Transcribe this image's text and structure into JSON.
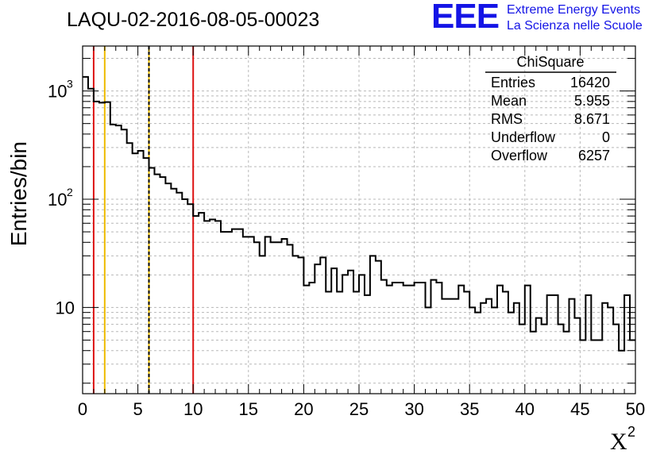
{
  "chart_data": {
    "type": "histogram",
    "title": "LAQU-02-2016-08-05-00023",
    "xlabel": "X",
    "xlabel_sup": "2",
    "ylabel": "Entries/bin",
    "xlim": [
      0,
      50
    ],
    "ylim": [
      1.6,
      2600
    ],
    "y_scale": "log",
    "grid": true,
    "x_ticks": [
      0,
      5,
      10,
      15,
      20,
      25,
      30,
      35,
      40,
      45,
      50
    ],
    "y_major_ticks": [
      10,
      100,
      1000
    ],
    "y_major_labels": [
      {
        "base": "10",
        "exp": ""
      },
      {
        "base": "10",
        "exp": "2"
      },
      {
        "base": "10",
        "exp": "3"
      }
    ],
    "bin_width": 0.5,
    "bin_low_edges": [
      0,
      0.5,
      1,
      1.5,
      2,
      2.5,
      3,
      3.5,
      4,
      4.5,
      5,
      5.5,
      6,
      6.5,
      7,
      7.5,
      8,
      8.5,
      9,
      9.5,
      10,
      10.5,
      11,
      11.5,
      12,
      12.5,
      13,
      13.5,
      14,
      14.5,
      15,
      15.5,
      16,
      16.5,
      17,
      17.5,
      18,
      18.5,
      19,
      19.5,
      20,
      20.5,
      21,
      21.5,
      22,
      22.5,
      23,
      23.5,
      24,
      24.5,
      25,
      25.5,
      26,
      26.5,
      27,
      27.5,
      28,
      28.5,
      29,
      29.5,
      30,
      30.5,
      31,
      31.5,
      32,
      32.5,
      33,
      33.5,
      34,
      34.5,
      35,
      35.5,
      36,
      36.5,
      37,
      37.5,
      38,
      38.5,
      39,
      39.5,
      40,
      40.5,
      41,
      41.5,
      42,
      42.5,
      43,
      43.5,
      44,
      44.5,
      45,
      45.5,
      46,
      46.5,
      47,
      47.5,
      48,
      48.5,
      49,
      49.5
    ],
    "values": [
      1350,
      1050,
      800,
      780,
      790,
      490,
      480,
      440,
      330,
      265,
      280,
      240,
      195,
      170,
      160,
      140,
      125,
      115,
      100,
      90,
      70,
      75,
      63,
      65,
      63,
      50,
      50,
      53,
      53,
      45,
      45,
      40,
      30,
      45,
      40,
      40,
      43,
      38,
      30,
      29,
      16,
      17,
      25,
      29,
      14,
      23,
      14,
      20,
      22,
      14,
      20,
      13,
      30,
      27,
      18,
      16,
      17,
      17,
      16,
      16,
      17,
      17,
      10,
      18,
      17,
      12,
      12,
      12,
      16,
      14,
      10,
      9,
      11,
      12,
      10,
      16,
      14,
      9,
      11,
      7,
      16,
      6,
      8,
      7,
      13,
      13,
      7,
      6,
      12,
      8,
      5,
      13,
      5,
      5,
      11,
      10,
      7,
      4,
      13,
      5
    ],
    "vertical_lines": [
      {
        "x": 1,
        "color": "#dd1111",
        "style": "solid"
      },
      {
        "x": 2,
        "color": "#eebb00",
        "style": "solid"
      },
      {
        "x": 6,
        "color": "#eebb00",
        "style": "solid"
      },
      {
        "x": 6,
        "color": "#000000",
        "style": "dashed"
      },
      {
        "x": 10,
        "color": "#dd1111",
        "style": "solid"
      }
    ],
    "stats_box": {
      "title": "ChiSquare",
      "rows": [
        {
          "label": "Entries",
          "value": "16420"
        },
        {
          "label": "Mean",
          "value": "5.955"
        },
        {
          "label": "RMS",
          "value": "8.671"
        },
        {
          "label": "Underflow",
          "value": "0"
        },
        {
          "label": "Overflow",
          "value": "6257"
        }
      ]
    },
    "colors": {
      "histogram": "#000000",
      "grid": "#b8b8b8",
      "logo": "#1414e6"
    }
  },
  "logo": {
    "mark": "EEE",
    "line1": "Extreme Energy Events",
    "line2": "La Scienza nelle Scuole"
  }
}
